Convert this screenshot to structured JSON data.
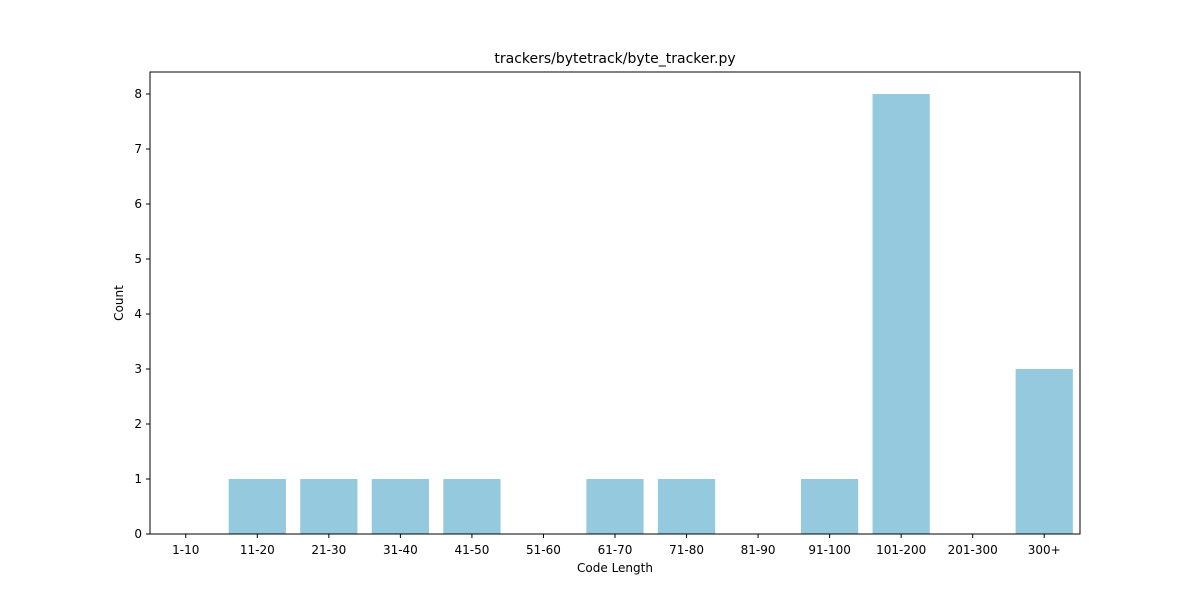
{
  "chart_data": {
    "type": "bar",
    "title": "trackers/bytetrack/byte_tracker.py",
    "xlabel": "Code Length",
    "ylabel": "Count",
    "categories": [
      "1-10",
      "11-20",
      "21-30",
      "31-40",
      "41-50",
      "51-60",
      "61-70",
      "71-80",
      "81-90",
      "91-100",
      "101-200",
      "201-300",
      "300+"
    ],
    "values": [
      0,
      1,
      1,
      1,
      1,
      0,
      1,
      1,
      0,
      1,
      8,
      0,
      3
    ],
    "ylim": [
      0,
      8.4
    ],
    "yticks": [
      0,
      1,
      2,
      3,
      4,
      5,
      6,
      7,
      8
    ],
    "bar_color": "#95c9dd",
    "grid": false,
    "legend": "none"
  }
}
